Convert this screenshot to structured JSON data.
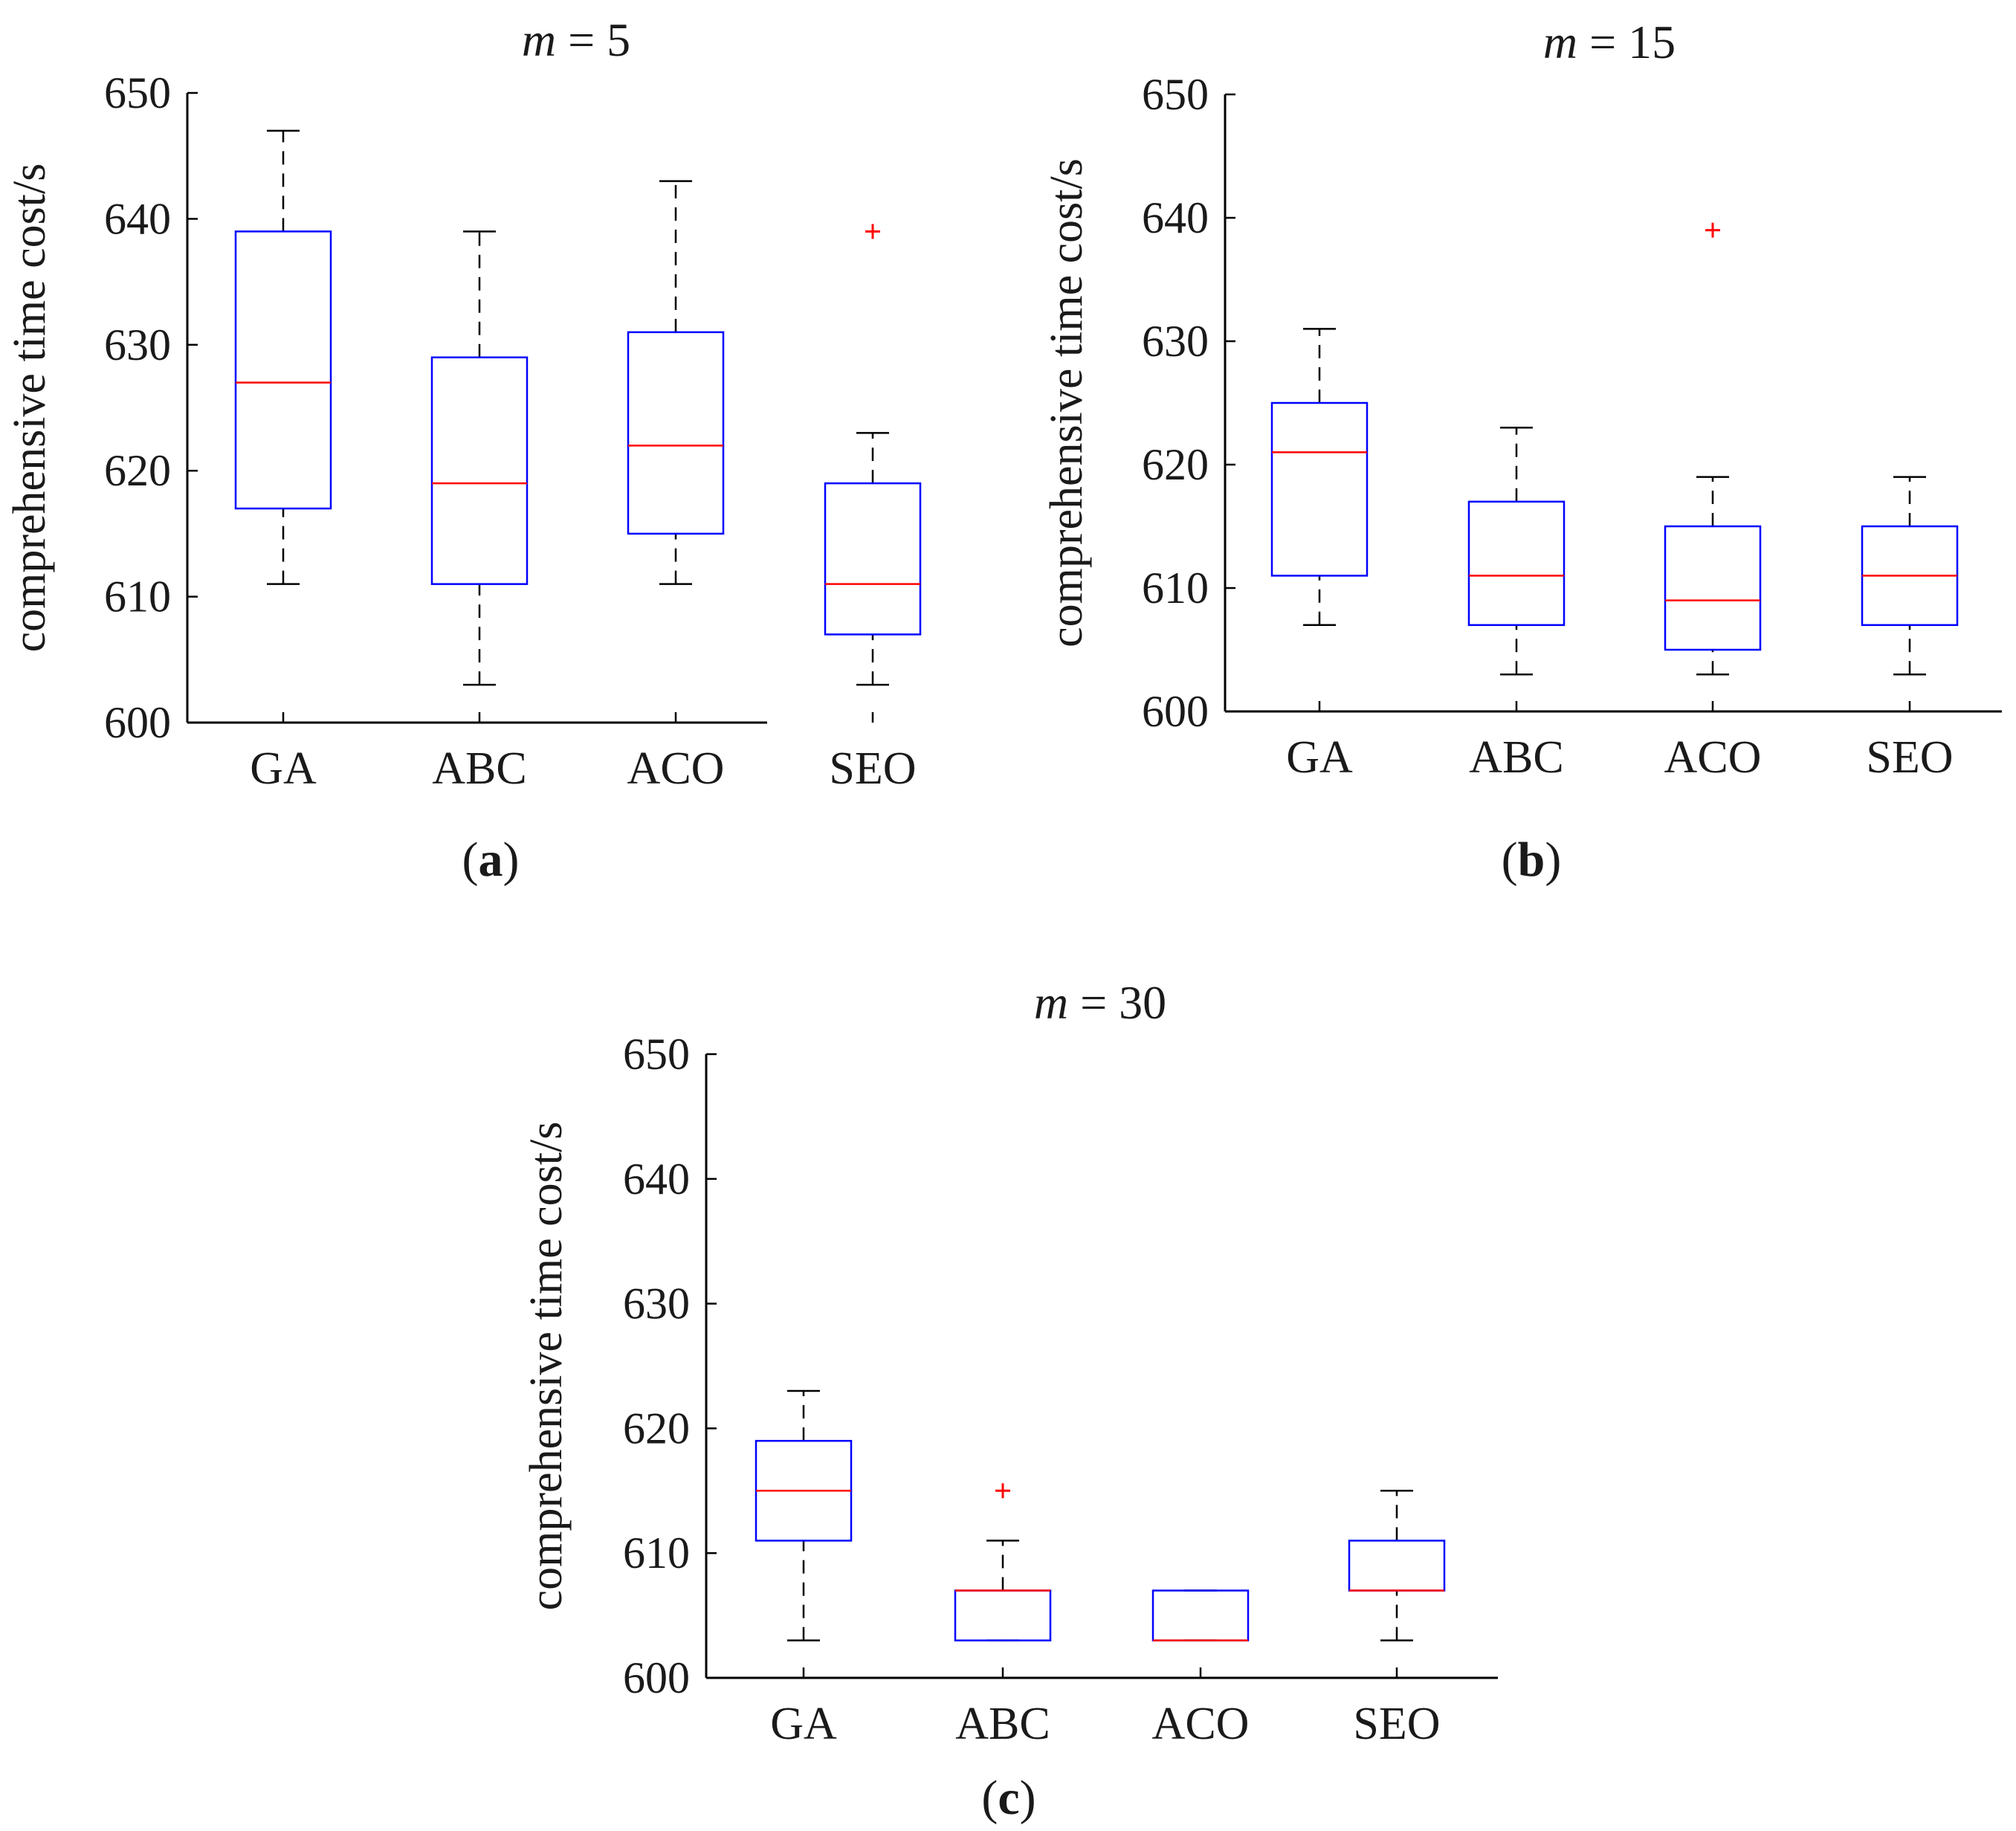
{
  "chart_data": [
    {
      "type": "box",
      "panel_label": "a",
      "title": {
        "var": "m",
        "eq": " = ",
        "value": "5"
      },
      "ylabel": "comprehensive time cost/s",
      "ylim": [
        600,
        650
      ],
      "yticks": [
        "600",
        "610",
        "620",
        "630",
        "640",
        "650"
      ],
      "categories": [
        "GA",
        "ABC",
        "ACO",
        "SEO"
      ],
      "boxes": [
        {
          "min": 611,
          "q1": 617,
          "median": 627,
          "q3": 639,
          "max": 647,
          "outliers": []
        },
        {
          "min": 603,
          "q1": 611,
          "median": 619,
          "q3": 629,
          "max": 639,
          "outliers": []
        },
        {
          "min": 611,
          "q1": 615,
          "median": 622,
          "q3": 631,
          "max": 643,
          "outliers": []
        },
        {
          "min": 603,
          "q1": 607,
          "median": 611,
          "q3": 619,
          "max": 623,
          "outliers": [
            639
          ]
        }
      ]
    },
    {
      "type": "box",
      "panel_label": "b",
      "title": {
        "var": "m",
        "eq": " = ",
        "value": "15"
      },
      "ylabel": "comprehensive time cost/s",
      "ylim": [
        600,
        650
      ],
      "yticks": [
        "600",
        "610",
        "620",
        "630",
        "640",
        "650"
      ],
      "categories": [
        "GA",
        "ABC",
        "ACO",
        "SEO"
      ],
      "boxes": [
        {
          "min": 607,
          "q1": 611,
          "median": 621,
          "q3": 625,
          "max": 631,
          "outliers": []
        },
        {
          "min": 603,
          "q1": 607,
          "median": 611,
          "q3": 617,
          "max": 623,
          "outliers": []
        },
        {
          "min": 603,
          "q1": 605,
          "median": 609,
          "q3": 615,
          "max": 619,
          "outliers": [
            639
          ]
        },
        {
          "min": 603,
          "q1": 607,
          "median": 611,
          "q3": 615,
          "max": 619,
          "outliers": []
        }
      ]
    },
    {
      "type": "box",
      "panel_label": "c",
      "title": {
        "var": "m",
        "eq": " = ",
        "value": "30"
      },
      "ylabel": "comprehensive time cost/s",
      "ylim": [
        600,
        650
      ],
      "yticks": [
        "600",
        "610",
        "620",
        "630",
        "640",
        "650"
      ],
      "categories": [
        "GA",
        "ABC",
        "ACO",
        "SEO"
      ],
      "boxes": [
        {
          "min": 603,
          "q1": 611,
          "median": 615,
          "q3": 619,
          "max": 623,
          "outliers": []
        },
        {
          "min": 603,
          "q1": 603,
          "median": 607,
          "q3": 607,
          "max": 611,
          "outliers": [
            615
          ]
        },
        {
          "min": 603,
          "q1": 603,
          "median": 603,
          "q3": 607,
          "max": 607,
          "outliers": []
        },
        {
          "min": 603,
          "q1": 607,
          "median": 607,
          "q3": 611,
          "max": 615,
          "outliers": []
        }
      ]
    }
  ],
  "colors": {
    "box": "#0000ff",
    "median": "#ff0000",
    "outlier": "#ff0000",
    "whisker": "#000000",
    "axis": "#000000"
  }
}
